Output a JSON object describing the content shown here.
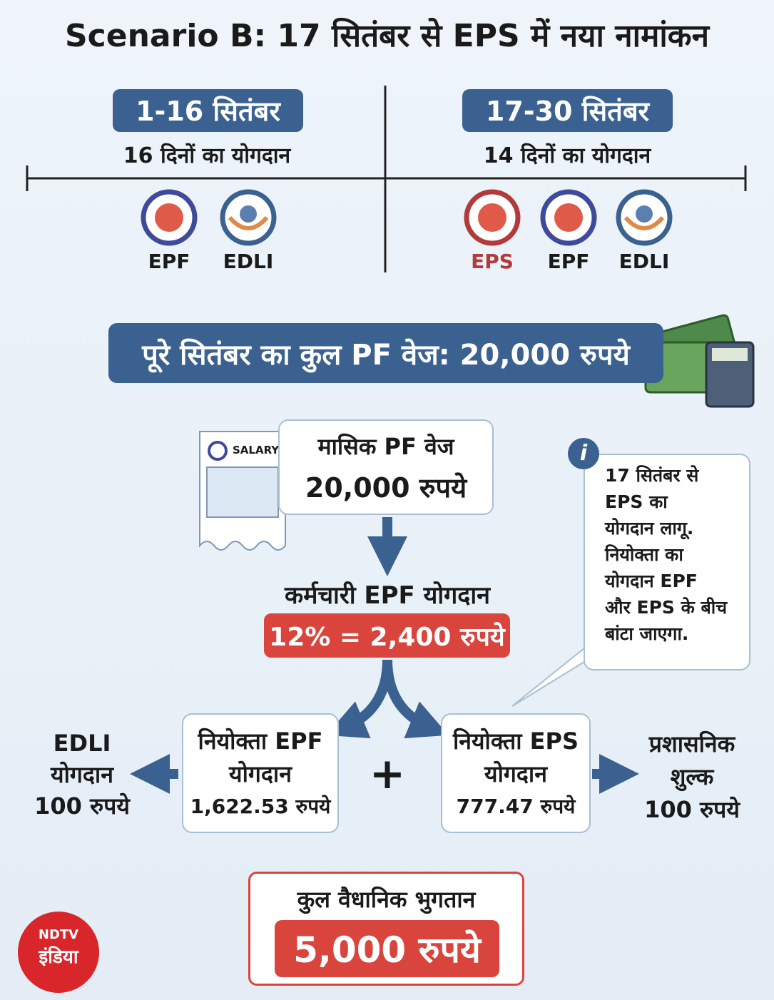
{
  "title": "Scenario B: 17 सितंबर से EPS में नया नामांकन",
  "periods": [
    {
      "label": "1-16 सितंबर",
      "subtitle": "16 दिनों का योगदान",
      "schemes": [
        "EPF",
        "EDLI"
      ]
    },
    {
      "label": "17-30 सितंबर",
      "subtitle": "14 दिनों का योगदान",
      "schemes": [
        "EPS",
        "EPF",
        "EDLI"
      ]
    }
  ],
  "wage_banner": "पूरे सितंबर का कुल PF वेज: 20,000 रुपये",
  "salary_slip": "SALARY",
  "monthly_wage": {
    "label": "मासिक PF वेज",
    "amount": "20,000 रुपये"
  },
  "info": {
    "icon": "i",
    "lines": [
      "17 सितंबर से",
      "EPS का",
      "योगदान लागू.",
      "नियोक्ता का",
      "योगदान EPF",
      "और EPS के बीच",
      "बांटा जाएगा."
    ]
  },
  "employee": {
    "label": "कर्मचारी EPF योगदान",
    "amount": "12% = 2,400 रुपये"
  },
  "employer_epf": [
    "नियोक्ता EPF",
    "योगदान",
    "1,622.53 रुपये"
  ],
  "plus": "+",
  "employer_eps": [
    "नियोक्ता EPS",
    "योगदान",
    "777.47 रुपये"
  ],
  "edli": [
    "EDLI",
    "योगदान",
    "100 रुपये"
  ],
  "admin": [
    "प्रशासनिक",
    "शुल्क",
    "100 रुपये"
  ],
  "total": {
    "label": "कुल वैधानिक भुगतान",
    "amount": "5,000 रुपये"
  },
  "logo": {
    "top": "NDTV",
    "bottom": "इंडिया"
  }
}
